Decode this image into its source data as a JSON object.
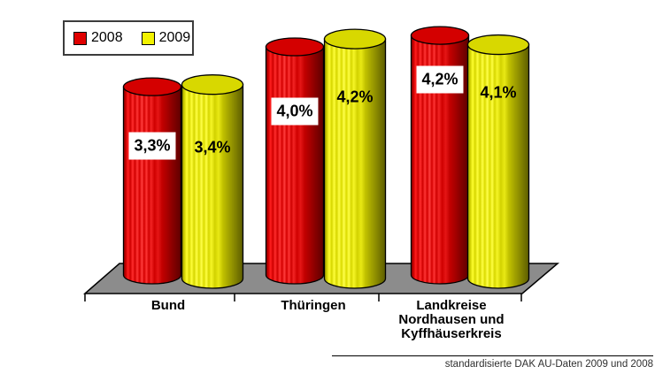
{
  "legend": {
    "position": "top-left"
  },
  "footnote": {
    "text": "standardisierte DAK AU-Daten 2009 und 2008"
  },
  "chart_data": {
    "type": "bar",
    "subtype": "3d-cylinder",
    "title": "",
    "unit": "%",
    "yaxis_visible": false,
    "grid": false,
    "legend_position": "top-left",
    "categories": [
      "Bund",
      "Thüringen",
      "Landkreise\nNordhausen und\nKyffhäuserkreis"
    ],
    "series": [
      {
        "name": "2008",
        "color": "#e00000",
        "values": [
          3.3,
          4.0,
          4.2
        ],
        "labels": [
          "3,3%",
          "4,0%",
          "4,2%"
        ]
      },
      {
        "name": "2009",
        "color": "#f2f200",
        "values": [
          3.4,
          4.2,
          4.1
        ],
        "labels": [
          "3,4%",
          "4,2%",
          "4,1%"
        ]
      }
    ],
    "floor_color": "#8c8c8c",
    "footnote": "standardisierte DAK AU-Daten 2009 und 2008"
  }
}
